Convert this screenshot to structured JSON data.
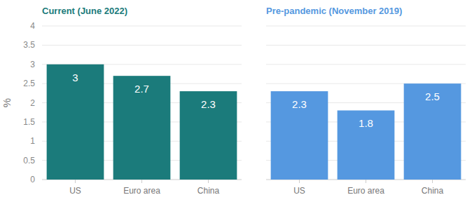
{
  "chart_data": [
    {
      "type": "bar",
      "title": "Current (June 2022)",
      "ylabel": "%",
      "categories": [
        "US",
        "Euro area",
        "China"
      ],
      "values": [
        3,
        2.7,
        2.3
      ],
      "color": "#1b7b7b",
      "ylim": [
        0,
        4
      ],
      "yticks": [
        0,
        0.5,
        1,
        1.5,
        2,
        2.5,
        3,
        3.5,
        4
      ],
      "grid": true,
      "data_labels": true
    },
    {
      "type": "bar",
      "title": "Pre-pandemic (November 2019)",
      "categories": [
        "US",
        "Euro area",
        "China"
      ],
      "values": [
        2.3,
        1.8,
        2.5
      ],
      "color": "#5598e0",
      "ylim": [
        0,
        4
      ],
      "yticks": [
        0,
        0.5,
        1,
        1.5,
        2,
        2.5,
        3,
        3.5,
        4
      ],
      "grid": true,
      "data_labels": true,
      "tick_labels": "x"
    }
  ]
}
